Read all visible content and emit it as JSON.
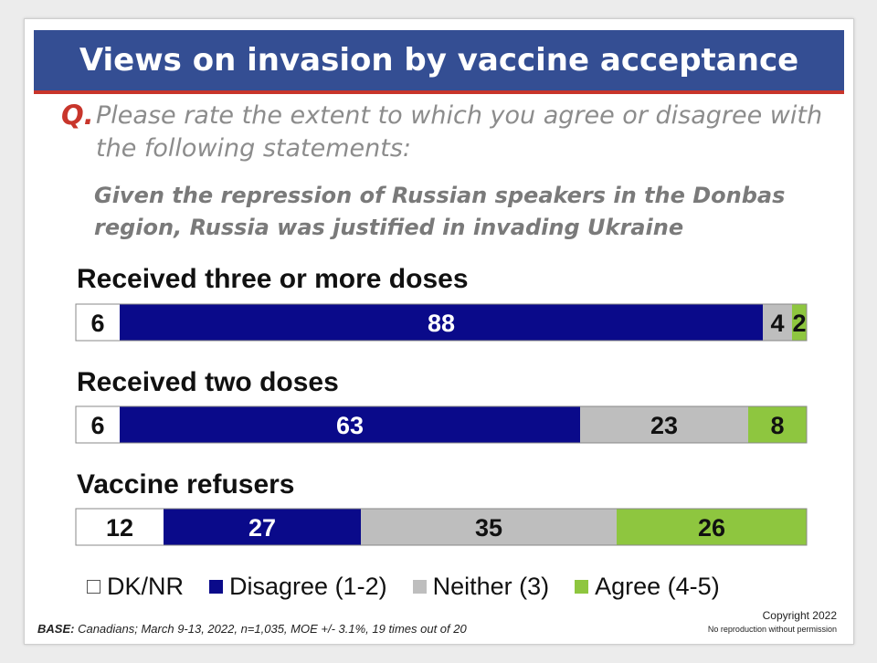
{
  "title": "Views on invasion by vaccine acceptance",
  "question": {
    "mark": "Q.",
    "text": "Please rate the extent to which you agree or disagree with the following statements:",
    "statement": "Given the repression of Russian speakers in the Donbas region, Russia was justified in invading Ukraine"
  },
  "chart_data": {
    "type": "bar",
    "orientation": "horizontal-stacked-100",
    "categories": [
      "Received three or more doses",
      "Received two doses",
      "Vaccine refusers"
    ],
    "series": [
      {
        "name": "DK/NR",
        "values": [
          6,
          6,
          12
        ],
        "color": "#ffffff"
      },
      {
        "name": "Disagree (1-2)",
        "values": [
          88,
          63,
          27
        ],
        "color": "#0a0a8a"
      },
      {
        "name": "Neither (3)",
        "values": [
          4,
          23,
          35
        ],
        "color": "#bebebe"
      },
      {
        "name": "Agree (4-5)",
        "values": [
          2,
          8,
          26
        ],
        "color": "#8ec63f"
      }
    ],
    "legend": "bottom"
  },
  "footer": {
    "base_label": "BASE:",
    "base_text": "Canadians; March 9-13, 2022, n=1,035, MOE +/- 3.1%, 19 times out of 20",
    "copyright": "Copyright 2022",
    "notice": "No reproduction without permission"
  }
}
